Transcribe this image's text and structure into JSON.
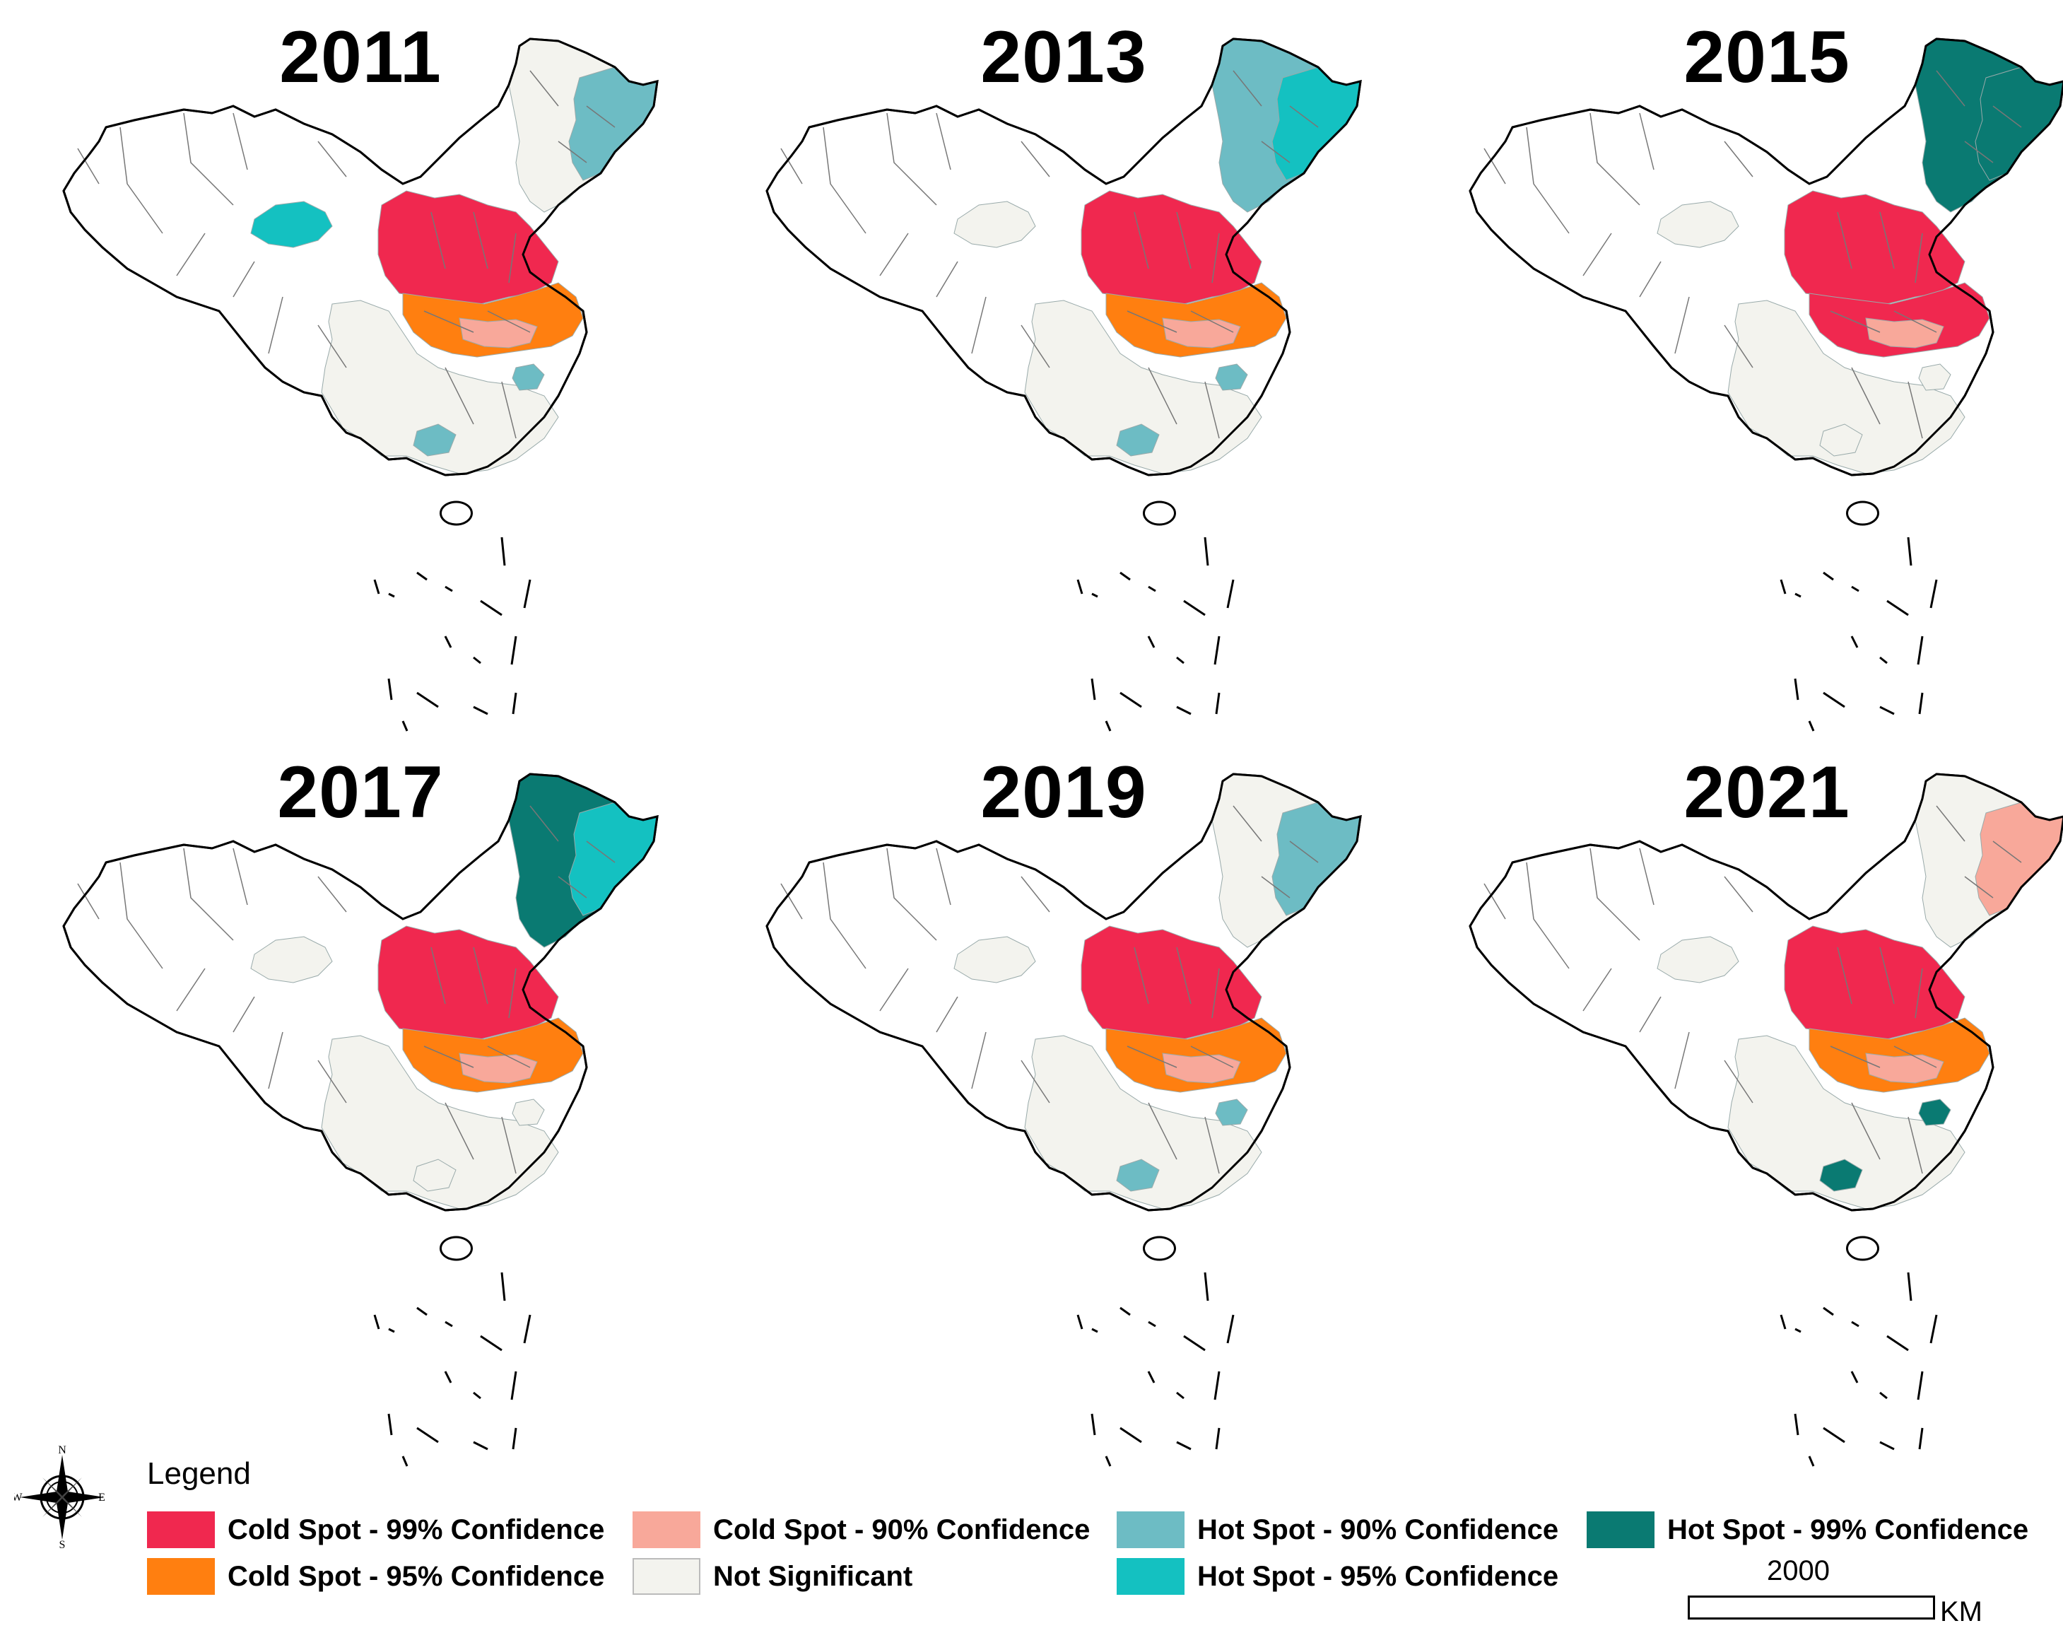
{
  "panels": [
    {
      "year": "2011",
      "regions": {
        "ne": "ns",
        "ne_east": "hot90",
        "west_patch": "hot95",
        "north": "cold99",
        "center": "cold95",
        "center_light": "cold90",
        "south_spots": "hot90",
        "southwest": "ns"
      }
    },
    {
      "year": "2013",
      "regions": {
        "ne": "hot90",
        "ne_east": "hot95",
        "west_patch": "ns",
        "north": "cold99",
        "center": "cold95",
        "center_light": "cold90",
        "south_spots": "hot90",
        "southwest": "ns"
      }
    },
    {
      "year": "2015",
      "regions": {
        "ne": "hot99",
        "ne_east": "hot99",
        "west_patch": "ns",
        "north": "cold99",
        "center": "cold99",
        "center_light": "cold90",
        "south_spots": "ns",
        "southwest": "ns"
      }
    },
    {
      "year": "2017",
      "regions": {
        "ne": "hot99",
        "ne_east": "hot95",
        "west_patch": "ns",
        "north": "cold99",
        "center": "cold95",
        "center_light": "cold90",
        "south_spots": "ns",
        "southwest": "ns"
      }
    },
    {
      "year": "2019",
      "regions": {
        "ne": "ns",
        "ne_east": "hot90",
        "west_patch": "ns",
        "north": "cold99",
        "center": "cold95",
        "center_light": "cold90",
        "south_spots": "hot90",
        "southwest": "ns"
      }
    },
    {
      "year": "2021",
      "regions": {
        "ne": "ns",
        "ne_east": "cold90",
        "west_patch": "ns",
        "north": "cold99",
        "center": "cold95",
        "center_light": "cold90",
        "south_spots": "hot99",
        "southwest": "ns"
      }
    }
  ],
  "legend": {
    "title": "Legend",
    "items": [
      {
        "key": "cold99",
        "label": "Cold Spot - 99% Confidence",
        "color": "#f0284f"
      },
      {
        "key": "cold95",
        "label": "Cold Spot - 95% Confidence",
        "color": "#ff7f10"
      },
      {
        "key": "cold90",
        "label": "Cold Spot - 90% Confidence",
        "color": "#f8a89a"
      },
      {
        "key": "ns",
        "label": "Not Significant",
        "color": "#f3f3ee"
      },
      {
        "key": "hot90",
        "label": "Hot Spot - 90% Confidence",
        "color": "#6dbcc4"
      },
      {
        "key": "hot95",
        "label": "Hot Spot - 95% Confidence",
        "color": "#14c1c1"
      },
      {
        "key": "hot99",
        "label": "Hot Spot - 99% Confidence",
        "color": "#0a7a72"
      }
    ]
  },
  "compass": {
    "n": "N",
    "s": "S",
    "e": "E",
    "w": "W"
  },
  "scale": {
    "distance": "2000",
    "unit": "KM"
  }
}
